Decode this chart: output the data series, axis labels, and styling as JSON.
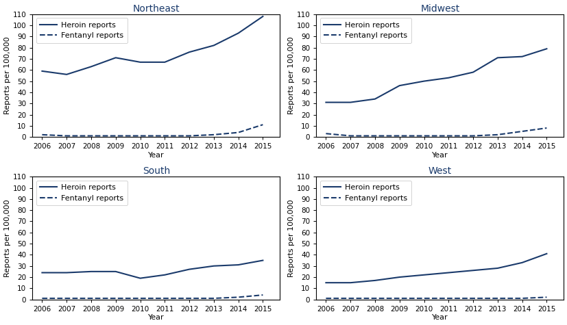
{
  "years": [
    2006,
    2007,
    2008,
    2009,
    2010,
    2011,
    2012,
    2013,
    2014,
    2015
  ],
  "regions": [
    "Northeast",
    "Midwest",
    "South",
    "West"
  ],
  "heroin": {
    "Northeast": [
      59,
      56,
      63,
      71,
      67,
      67,
      76,
      82,
      93,
      108
    ],
    "Midwest": [
      31,
      31,
      34,
      46,
      50,
      53,
      58,
      71,
      72,
      79
    ],
    "South": [
      24,
      24,
      25,
      25,
      19,
      22,
      27,
      30,
      31,
      35
    ],
    "West": [
      15,
      15,
      17,
      20,
      22,
      24,
      26,
      28,
      33,
      41
    ]
  },
  "fentanyl": {
    "Northeast": [
      2,
      1,
      1,
      1,
      1,
      1,
      1,
      2,
      4,
      11
    ],
    "Midwest": [
      3,
      1,
      1,
      1,
      1,
      1,
      1,
      2,
      5,
      8
    ],
    "South": [
      1,
      1,
      1,
      1,
      1,
      1,
      1,
      1,
      2,
      4
    ],
    "West": [
      1,
      1,
      1,
      1,
      1,
      1,
      1,
      1,
      1,
      2
    ]
  },
  "line_color": "#1a3a6b",
  "title_color": "#1a3a6b",
  "ylabel": "Reports per 100,000",
  "xlabel": "Year",
  "ylim": [
    0,
    110
  ],
  "yticks": [
    0,
    10,
    20,
    30,
    40,
    50,
    60,
    70,
    80,
    90,
    100,
    110
  ],
  "legend_heroin": "Heroin reports",
  "legend_fentanyl": "Fentanyl reports",
  "title_fontsize": 10,
  "label_fontsize": 8,
  "tick_fontsize": 7.5,
  "legend_fontsize": 8
}
